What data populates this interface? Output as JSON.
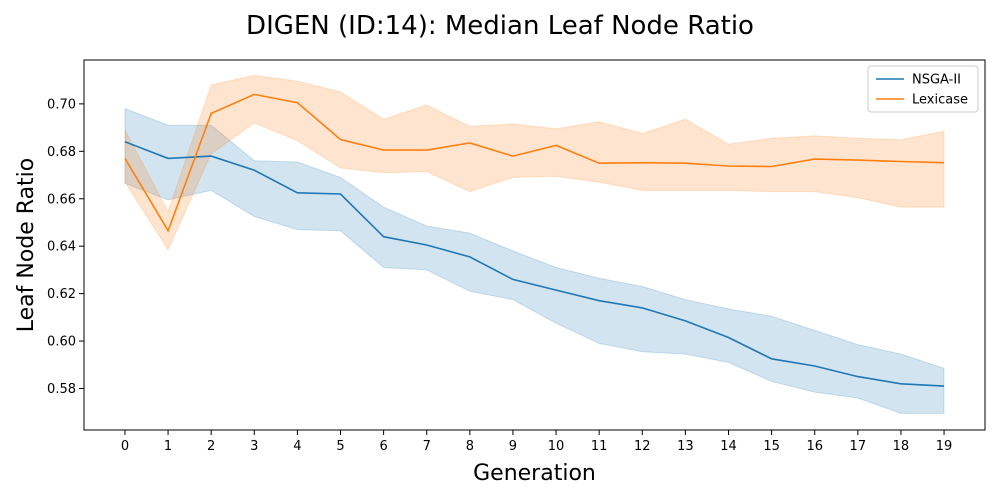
{
  "chart_data": {
    "type": "line",
    "title": "DIGEN (ID:14): Median Leaf Node Ratio",
    "xlabel": "Generation",
    "ylabel": "Leaf Node Ratio",
    "x": [
      0,
      1,
      2,
      3,
      4,
      5,
      6,
      7,
      8,
      9,
      10,
      11,
      12,
      13,
      14,
      15,
      16,
      17,
      18,
      19
    ],
    "xlim": [
      -0.95,
      19.95
    ],
    "ylim": [
      0.5625,
      0.7185
    ],
    "yticks": [
      0.58,
      0.6,
      0.62,
      0.64,
      0.66,
      0.68,
      0.7
    ],
    "ytick_labels": [
      "0.58",
      "0.60",
      "0.62",
      "0.64",
      "0.66",
      "0.68",
      "0.70"
    ],
    "grid": false,
    "legend": "top-right",
    "series": [
      {
        "name": "NSGA-II",
        "color": "#1f77b4",
        "values": [
          0.684,
          0.677,
          0.678,
          0.672,
          0.6625,
          0.662,
          0.644,
          0.6405,
          0.6355,
          0.626,
          0.6215,
          0.617,
          0.614,
          0.6085,
          0.6015,
          0.5925,
          0.5895,
          0.585,
          0.582,
          0.581
        ],
        "lower": [
          0.6665,
          0.6595,
          0.6635,
          0.6525,
          0.647,
          0.6465,
          0.631,
          0.63,
          0.621,
          0.6175,
          0.6075,
          0.599,
          0.5955,
          0.5945,
          0.591,
          0.583,
          0.5785,
          0.576,
          0.5695,
          0.5695
        ],
        "upper": [
          0.698,
          0.691,
          0.691,
          0.676,
          0.6755,
          0.669,
          0.6565,
          0.6485,
          0.6455,
          0.638,
          0.631,
          0.6265,
          0.623,
          0.6175,
          0.6135,
          0.6105,
          0.6045,
          0.5985,
          0.5945,
          0.5885
        ]
      },
      {
        "name": "Lexicase",
        "color": "#ff7f0e",
        "values": [
          0.677,
          0.6465,
          0.696,
          0.704,
          0.7005,
          0.685,
          0.6805,
          0.6805,
          0.6835,
          0.678,
          0.6825,
          0.675,
          0.6752,
          0.675,
          0.6738,
          0.6736,
          0.6767,
          0.6763,
          0.6757,
          0.6752
        ],
        "lower": [
          0.667,
          0.6385,
          0.679,
          0.692,
          0.6845,
          0.673,
          0.671,
          0.6715,
          0.663,
          0.669,
          0.6695,
          0.667,
          0.6635,
          0.6635,
          0.6635,
          0.663,
          0.663,
          0.6605,
          0.6565,
          0.6565
        ],
        "upper": [
          0.689,
          0.6545,
          0.708,
          0.712,
          0.7095,
          0.705,
          0.6935,
          0.6995,
          0.6905,
          0.6915,
          0.6895,
          0.6925,
          0.6875,
          0.6935,
          0.683,
          0.6855,
          0.6865,
          0.6855,
          0.6848,
          0.6885
        ]
      }
    ]
  }
}
